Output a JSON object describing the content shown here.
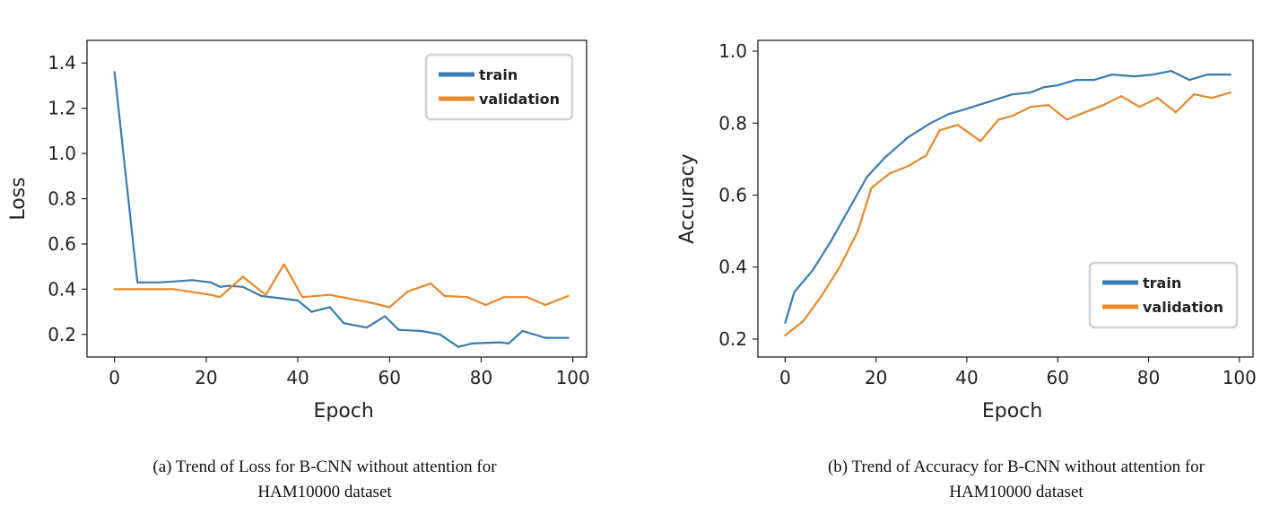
{
  "chart_data": [
    {
      "type": "line",
      "xlabel": "Epoch",
      "ylabel": "Loss",
      "xlim": [
        -6,
        103
      ],
      "ylim": [
        0.1,
        1.5
      ],
      "xticks": [
        0,
        20,
        40,
        60,
        80,
        100
      ],
      "yticks": [
        0.2,
        0.4,
        0.6,
        0.8,
        1.0,
        1.2,
        1.4
      ],
      "ytick_labels": [
        "0.2",
        "0.4",
        "0.6",
        "0.8",
        "1.0",
        "1.2",
        "1.4"
      ],
      "legend_position": "top-right",
      "series": [
        {
          "name": "train",
          "color": "#3b7bb0",
          "x": [
            0,
            5,
            10,
            17,
            21,
            23,
            25,
            28,
            32,
            36,
            40,
            43,
            47,
            50,
            55,
            59,
            62,
            67,
            71,
            75,
            78,
            84,
            86,
            89,
            94,
            99
          ],
          "y": [
            1.36,
            0.43,
            0.43,
            0.44,
            0.43,
            0.41,
            0.415,
            0.41,
            0.37,
            0.36,
            0.35,
            0.3,
            0.32,
            0.25,
            0.23,
            0.28,
            0.22,
            0.215,
            0.2,
            0.145,
            0.16,
            0.165,
            0.16,
            0.215,
            0.185,
            0.185
          ]
        },
        {
          "name": "validation",
          "color": "#e8892b",
          "x": [
            0,
            5,
            13,
            21,
            23,
            28,
            33,
            37,
            41,
            47,
            52,
            56,
            60,
            64,
            69,
            72,
            77,
            81,
            85,
            90,
            94,
            99
          ],
          "y": [
            0.4,
            0.4,
            0.4,
            0.375,
            0.365,
            0.455,
            0.375,
            0.51,
            0.365,
            0.375,
            0.355,
            0.34,
            0.32,
            0.39,
            0.425,
            0.37,
            0.365,
            0.33,
            0.365,
            0.365,
            0.33,
            0.37
          ]
        }
      ]
    },
    {
      "type": "line",
      "xlabel": "Epoch",
      "ylabel": "Accuracy",
      "xlim": [
        -6,
        103
      ],
      "ylim": [
        0.15,
        1.03
      ],
      "xticks": [
        0,
        20,
        40,
        60,
        80,
        100
      ],
      "yticks": [
        0.2,
        0.4,
        0.6,
        0.8,
        1.0
      ],
      "ytick_labels": [
        "0.2",
        "0.4",
        "0.6",
        "0.8",
        "1.0"
      ],
      "legend_position": "bottom-right",
      "series": [
        {
          "name": "train",
          "color": "#3b7bb0",
          "x": [
            0,
            2,
            6,
            10,
            14,
            18,
            22,
            27,
            32,
            36,
            40,
            45,
            50,
            54,
            57,
            60,
            64,
            68,
            72,
            77,
            81,
            85,
            89,
            93,
            98
          ],
          "y": [
            0.245,
            0.33,
            0.39,
            0.47,
            0.56,
            0.65,
            0.705,
            0.76,
            0.8,
            0.825,
            0.84,
            0.86,
            0.88,
            0.885,
            0.9,
            0.905,
            0.92,
            0.92,
            0.935,
            0.93,
            0.935,
            0.945,
            0.92,
            0.935,
            0.935
          ]
        },
        {
          "name": "validation",
          "color": "#e8892b",
          "x": [
            0,
            4,
            8,
            12,
            16,
            19,
            23,
            27,
            31,
            34,
            38,
            43,
            47,
            50,
            54,
            58,
            62,
            66,
            70,
            74,
            78,
            82,
            86,
            90,
            94,
            98
          ],
          "y": [
            0.21,
            0.25,
            0.32,
            0.4,
            0.5,
            0.62,
            0.66,
            0.68,
            0.71,
            0.78,
            0.795,
            0.75,
            0.81,
            0.82,
            0.845,
            0.85,
            0.81,
            0.83,
            0.85,
            0.875,
            0.845,
            0.87,
            0.83,
            0.88,
            0.87,
            0.885
          ]
        }
      ]
    }
  ],
  "captions": {
    "a_line1": "(a) Trend of Loss for B-CNN without attention for",
    "a_line2": "HAM10000 dataset",
    "b_line1": "(b) Trend of Accuracy for B-CNN without attention for",
    "b_line2": "HAM10000 dataset"
  }
}
